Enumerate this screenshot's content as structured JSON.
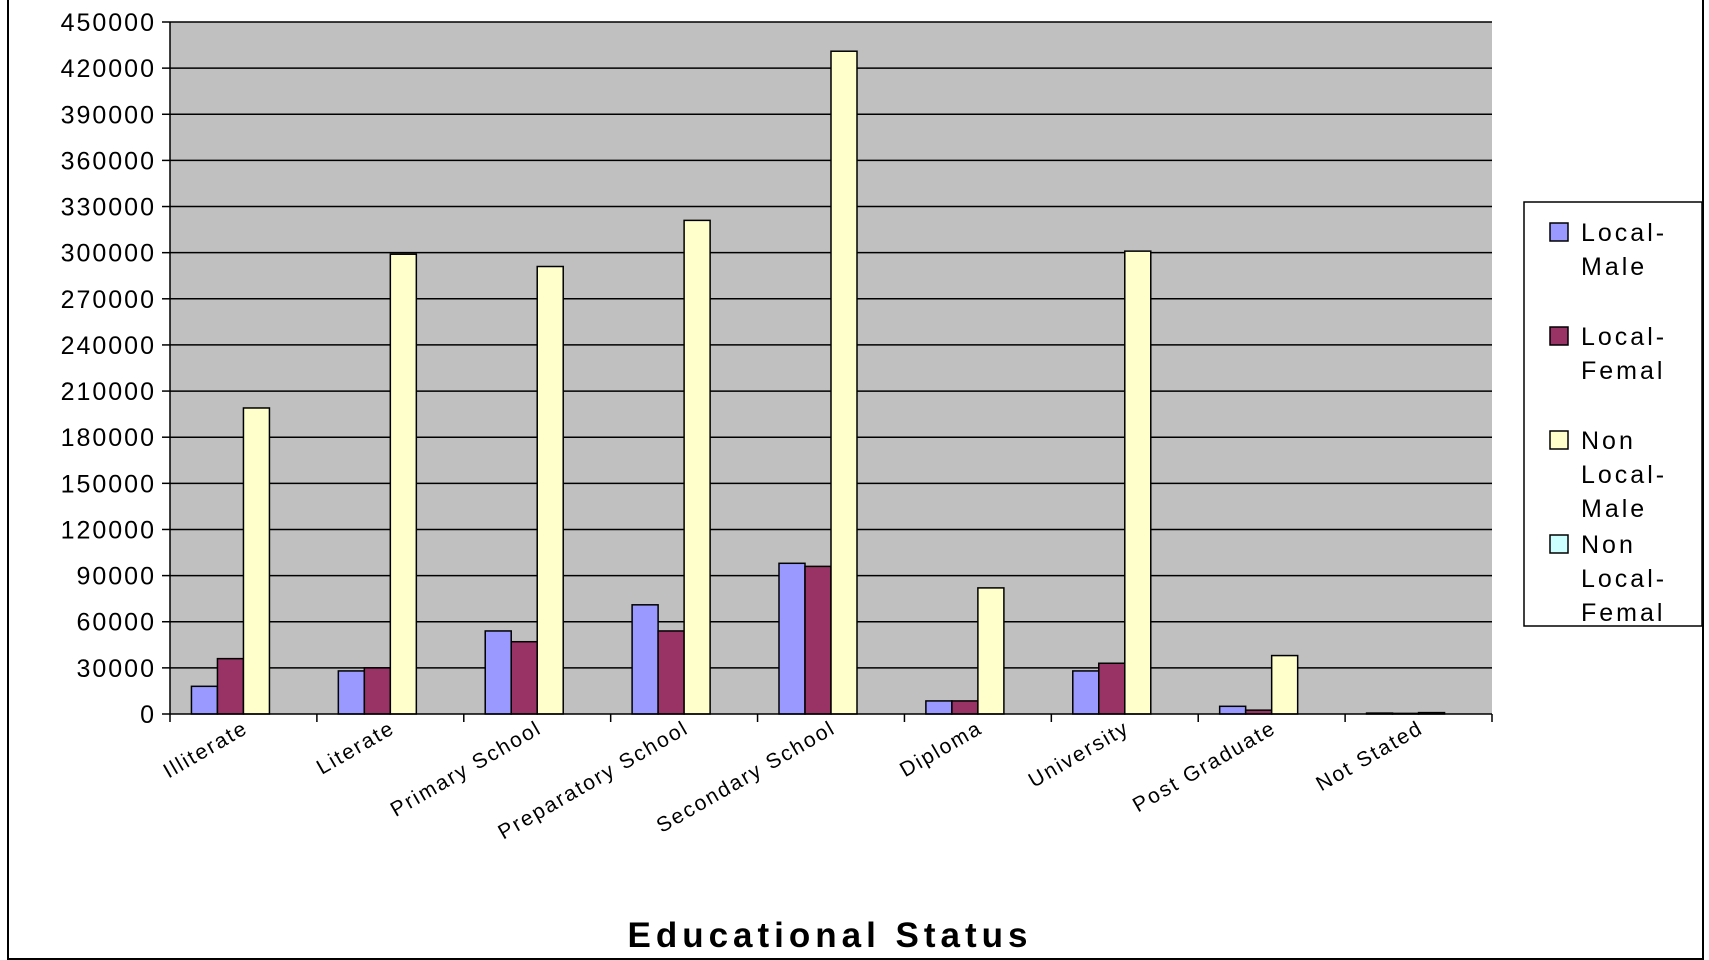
{
  "chart_data": {
    "type": "bar",
    "xlabel": "Educational Status",
    "ylabel": "",
    "ylim": [
      0,
      450000
    ],
    "ytick_step": 30000,
    "grid": true,
    "legend_position": "right",
    "plot_background": "#c0c0c0",
    "categories": [
      "Illiterate",
      "Literate",
      "Primary School",
      "Preparatory School",
      "Secondary School",
      "Diploma",
      "University",
      "Post Graduate",
      "Not Stated"
    ],
    "series": [
      {
        "name": "Local-Male",
        "legend_lines": [
          "Local-",
          "Male"
        ],
        "color": "#9999ff",
        "values": [
          18000,
          28000,
          54000,
          71000,
          98000,
          8500,
          28000,
          5000,
          600
        ]
      },
      {
        "name": "Local-Femal",
        "legend_lines": [
          "Local-",
          "Femal"
        ],
        "color": "#993366",
        "values": [
          36000,
          30000,
          47000,
          54000,
          96000,
          8500,
          33000,
          2500,
          400
        ]
      },
      {
        "name": "Non Local-Male",
        "legend_lines": [
          "Non",
          "Local-",
          "Male"
        ],
        "color": "#ffffcc",
        "values": [
          199000,
          299000,
          291000,
          321000,
          431000,
          82000,
          301000,
          38000,
          900
        ]
      },
      {
        "name": "Non Local-Femal",
        "legend_lines": [
          "Non",
          "Local-",
          "Femal"
        ],
        "color": "#ccffff",
        "values": [
          0,
          0,
          0,
          0,
          0,
          0,
          0,
          0,
          0
        ]
      }
    ]
  }
}
